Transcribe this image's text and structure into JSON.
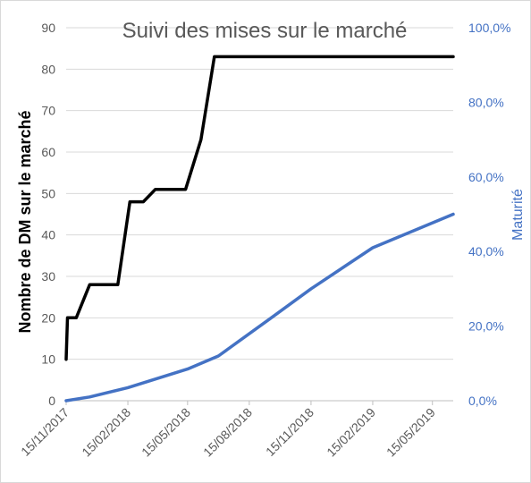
{
  "chart_data": {
    "type": "line",
    "title": "Suivi des mises sur le marché",
    "ylabel": "Nombre de DM sur le marché",
    "ylabel_right": "Maturité",
    "ylim": [
      0,
      90
    ],
    "ylim_right": [
      0,
      1
    ],
    "yticks": [
      "0",
      "10",
      "20",
      "30",
      "40",
      "50",
      "60",
      "70",
      "80",
      "90"
    ],
    "yticks_right": [
      "0,0%",
      "20,0%",
      "40,0%",
      "60,0%",
      "80,0%",
      "100,0%"
    ],
    "xlim": [
      "2017-11-15",
      "2019-06-15"
    ],
    "xticks": [
      "15/11/2017",
      "15/02/2018",
      "15/05/2018",
      "15/08/2018",
      "15/11/2018",
      "15/02/2019",
      "15/05/2019"
    ],
    "grid": true,
    "legend": "none",
    "series": [
      {
        "axis": "left",
        "color": "#000000",
        "points": [
          [
            "2017-11-15",
            10
          ],
          [
            "2017-11-17",
            20
          ],
          [
            "2017-11-30",
            20
          ],
          [
            "2017-12-20",
            28
          ],
          [
            "2018-01-31",
            28
          ],
          [
            "2018-02-18",
            48
          ],
          [
            "2018-03-10",
            48
          ],
          [
            "2018-03-28",
            51
          ],
          [
            "2018-04-28",
            51
          ],
          [
            "2018-05-12",
            51
          ],
          [
            "2018-06-04",
            63
          ],
          [
            "2018-06-24",
            83
          ],
          [
            "2019-06-15",
            83
          ]
        ]
      },
      {
        "axis": "right",
        "color": "#4472c4",
        "points": [
          [
            "2017-11-15",
            0.0
          ],
          [
            "2017-12-20",
            0.01
          ],
          [
            "2018-02-15",
            0.035
          ],
          [
            "2018-05-15",
            0.085
          ],
          [
            "2018-06-30",
            0.12
          ],
          [
            "2018-09-15",
            0.22
          ],
          [
            "2018-11-15",
            0.3
          ],
          [
            "2019-02-15",
            0.41
          ],
          [
            "2019-06-15",
            0.5
          ]
        ]
      }
    ]
  }
}
